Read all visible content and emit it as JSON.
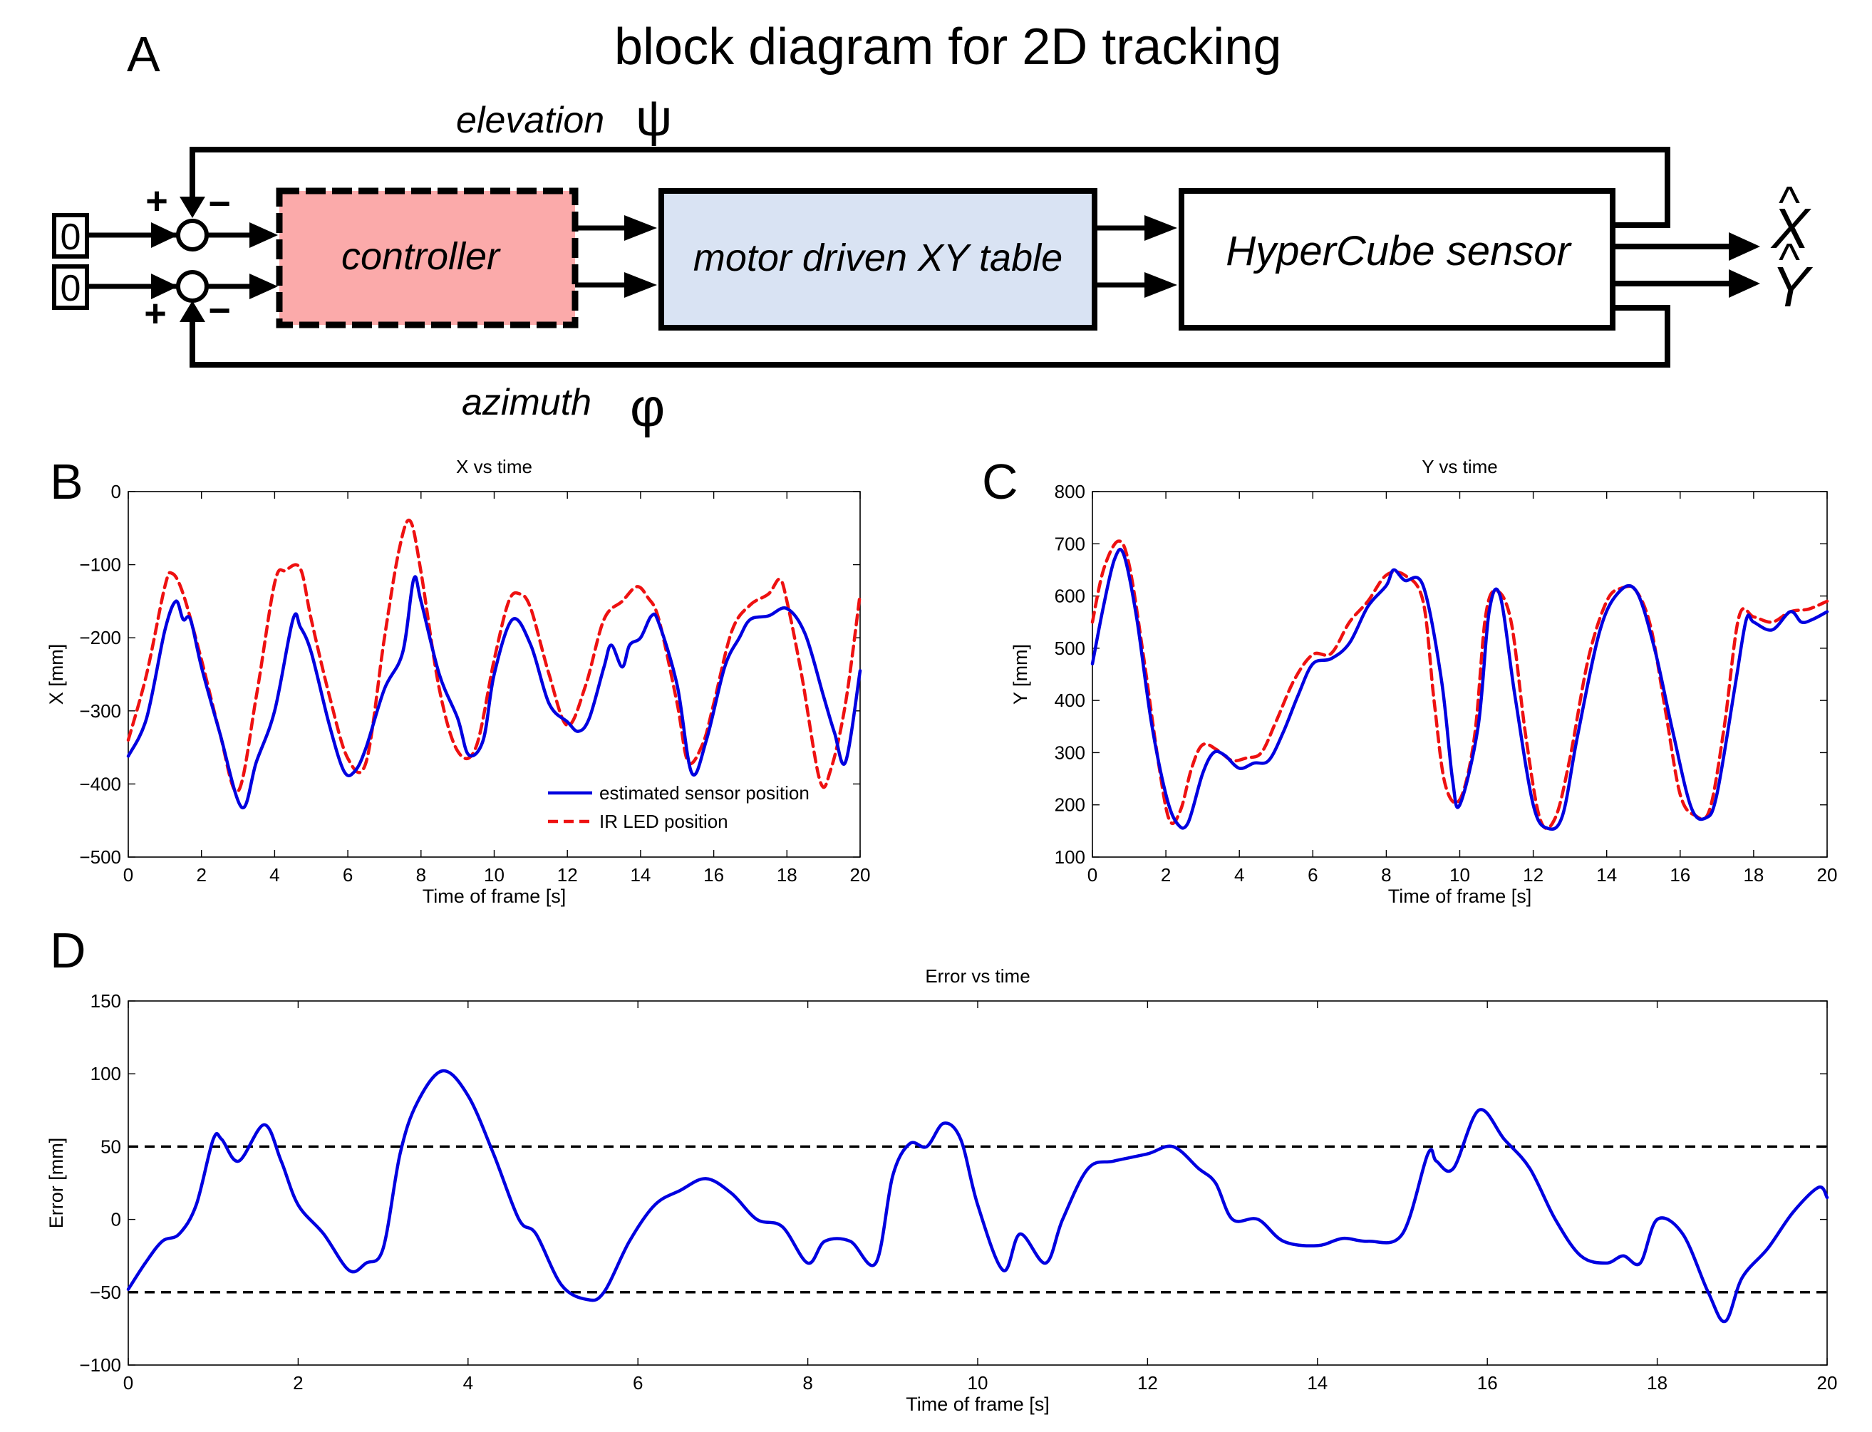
{
  "panel_a": {
    "label": "A",
    "title": "block diagram for 2D tracking",
    "input_top": "0",
    "input_bottom": "0",
    "plus_top": "+",
    "minus_top": "−",
    "plus_bottom": "+",
    "minus_bottom": "−",
    "controller": "controller",
    "table": "motor driven XY table",
    "sensor": "HyperCube sensor",
    "elevation_label": "elevation",
    "elevation_symbol": "ψ",
    "azimuth_label": "azimuth",
    "azimuth_symbol": "φ",
    "out_x": "X",
    "out_y": "Y",
    "hat": "^",
    "colors": {
      "controller_fill": "#fbaaaa",
      "table_fill": "#d9e3f3"
    }
  },
  "chart_data": [
    {
      "panel": "B",
      "type": "line",
      "title": "X vs time",
      "xlabel": "Time of frame [s]",
      "ylabel": "X [mm]",
      "xlim": [
        0,
        20
      ],
      "ylim": [
        -500,
        0
      ],
      "xticks": [
        0,
        2,
        4,
        6,
        8,
        10,
        12,
        14,
        16,
        18,
        20
      ],
      "xtick_labels": [
        "0",
        "2",
        "4",
        "6",
        "8",
        "10",
        "12",
        "14",
        "16",
        "18",
        "20"
      ],
      "yticks": [
        0,
        -100,
        -200,
        -300,
        -400,
        -500
      ],
      "ytick_labels": [
        "0",
        "−100",
        "−200",
        "−300",
        "−400",
        "−500"
      ],
      "legend": {
        "position": "bottom-right",
        "entries": [
          {
            "label": "estimated sensor position",
            "color": "#0000e0",
            "style": "solid"
          },
          {
            "label": "IR LED position",
            "color": "#ee1111",
            "style": "dashed"
          }
        ]
      },
      "series": [
        {
          "name": "estimated sensor position",
          "color": "#0000e0",
          "style": "solid",
          "x": [
            0,
            0.5,
            1.0,
            1.3,
            1.5,
            1.7,
            2.0,
            2.5,
            3.1,
            3.5,
            4.0,
            4.5,
            4.7,
            5.0,
            5.5,
            5.9,
            6.2,
            6.5,
            7.0,
            7.5,
            7.8,
            8.0,
            8.5,
            9.0,
            9.3,
            9.7,
            10.0,
            10.5,
            11.0,
            11.5,
            12.0,
            12.3,
            12.6,
            13.0,
            13.2,
            13.5,
            13.7,
            14.0,
            14.3,
            14.5,
            15.0,
            15.4,
            15.8,
            16.3,
            16.7,
            17.0,
            17.5,
            18.0,
            18.5,
            19.0,
            19.3,
            19.6,
            20.0
          ],
          "y": [
            -362,
            -310,
            -190,
            -150,
            -175,
            -175,
            -240,
            -330,
            -432,
            -370,
            -300,
            -175,
            -185,
            -220,
            -320,
            -383,
            -382,
            -350,
            -270,
            -220,
            -120,
            -150,
            -250,
            -310,
            -360,
            -340,
            -250,
            -175,
            -210,
            -290,
            -315,
            -328,
            -310,
            -240,
            -210,
            -240,
            -210,
            -200,
            -170,
            -180,
            -265,
            -385,
            -340,
            -240,
            -200,
            -175,
            -170,
            -160,
            -195,
            -280,
            -330,
            -370,
            -245
          ]
        },
        {
          "name": "IR LED position",
          "color": "#ee1111",
          "style": "dashed",
          "x": [
            0,
            0.5,
            1.0,
            1.2,
            1.5,
            2.0,
            2.5,
            3.0,
            3.5,
            4.0,
            4.3,
            4.7,
            5.0,
            5.5,
            6.0,
            6.5,
            7.0,
            7.4,
            7.7,
            8.0,
            8.5,
            9.0,
            9.5,
            10.0,
            10.4,
            10.7,
            11.0,
            11.5,
            12.0,
            12.5,
            13.0,
            13.5,
            13.9,
            14.2,
            14.5,
            15.0,
            15.3,
            15.7,
            16.0,
            16.5,
            17.0,
            17.5,
            17.8,
            18.0,
            18.4,
            18.9,
            19.2,
            19.6,
            20.0
          ],
          "y": [
            -340,
            -250,
            -130,
            -112,
            -140,
            -230,
            -330,
            -410,
            -280,
            -125,
            -108,
            -105,
            -175,
            -280,
            -365,
            -370,
            -200,
            -80,
            -40,
            -110,
            -270,
            -355,
            -350,
            -230,
            -150,
            -140,
            -160,
            -250,
            -320,
            -265,
            -175,
            -150,
            -130,
            -145,
            -175,
            -290,
            -370,
            -345,
            -290,
            -190,
            -155,
            -140,
            -120,
            -150,
            -250,
            -395,
            -380,
            -290,
            -140
          ]
        }
      ]
    },
    {
      "panel": "C",
      "type": "line",
      "title": "Y vs time",
      "xlabel": "Time of frame [s]",
      "ylabel": "Y [mm]",
      "xlim": [
        0,
        20
      ],
      "ylim": [
        100,
        800
      ],
      "xticks": [
        0,
        2,
        4,
        6,
        8,
        10,
        12,
        14,
        16,
        18,
        20
      ],
      "xtick_labels": [
        "0",
        "2",
        "4",
        "6",
        "8",
        "10",
        "12",
        "14",
        "16",
        "18",
        "20"
      ],
      "yticks": [
        100,
        200,
        300,
        400,
        500,
        600,
        700,
        800
      ],
      "ytick_labels": [
        "100",
        "200",
        "300",
        "400",
        "500",
        "600",
        "700",
        "800"
      ],
      "series": [
        {
          "name": "estimated sensor position",
          "color": "#0000e0",
          "style": "solid",
          "x": [
            0,
            0.3,
            0.6,
            0.85,
            1.2,
            1.6,
            2.0,
            2.3,
            2.6,
            3.0,
            3.3,
            3.6,
            4.0,
            4.4,
            4.8,
            5.2,
            5.6,
            6.0,
            6.5,
            7.0,
            7.5,
            8.0,
            8.2,
            8.5,
            9.0,
            9.5,
            9.8,
            10.0,
            10.5,
            10.8,
            11.1,
            11.5,
            12.0,
            12.4,
            12.8,
            13.2,
            13.8,
            14.3,
            14.8,
            15.3,
            15.8,
            16.3,
            16.7,
            17.0,
            17.5,
            17.8,
            18.0,
            18.5,
            19.0,
            19.3,
            19.6,
            20.0
          ],
          "y": [
            470,
            580,
            670,
            680,
            560,
            360,
            220,
            165,
            165,
            260,
            300,
            295,
            270,
            280,
            285,
            340,
            410,
            470,
            480,
            510,
            580,
            620,
            650,
            630,
            620,
            440,
            250,
            200,
            350,
            570,
            600,
            410,
            200,
            155,
            180,
            330,
            530,
            605,
            610,
            500,
            340,
            195,
            175,
            220,
            430,
            555,
            550,
            535,
            570,
            550,
            555,
            570
          ]
        },
        {
          "name": "IR LED position",
          "color": "#ee1111",
          "style": "dashed",
          "x": [
            0,
            0.3,
            0.7,
            1.0,
            1.4,
            1.8,
            2.1,
            2.4,
            2.7,
            3.0,
            3.4,
            3.8,
            4.2,
            4.6,
            5.0,
            5.5,
            6.0,
            6.5,
            7.0,
            7.5,
            8.0,
            8.5,
            9.0,
            9.3,
            9.6,
            10.0,
            10.4,
            10.7,
            11.0,
            11.4,
            11.8,
            12.2,
            12.6,
            13.0,
            13.5,
            14.0,
            14.4,
            14.8,
            15.2,
            15.6,
            16.0,
            16.4,
            16.8,
            17.2,
            17.6,
            18.0,
            18.5,
            19.0,
            19.5,
            20.0
          ],
          "y": [
            550,
            650,
            705,
            660,
            480,
            280,
            170,
            190,
            270,
            315,
            305,
            285,
            290,
            300,
            360,
            440,
            488,
            490,
            550,
            590,
            640,
            640,
            590,
            400,
            240,
            210,
            330,
            560,
            610,
            550,
            330,
            170,
            175,
            290,
            480,
            590,
            615,
            610,
            540,
            380,
            220,
            180,
            190,
            350,
            560,
            560,
            550,
            570,
            575,
            590
          ]
        }
      ]
    },
    {
      "panel": "D",
      "type": "line",
      "title": "Error vs time",
      "xlabel": "Time of frame [s]",
      "ylabel": "Error [mm]",
      "xlim": [
        0,
        20
      ],
      "ylim": [
        -100,
        150
      ],
      "xticks": [
        0,
        2,
        4,
        6,
        8,
        10,
        12,
        14,
        16,
        18,
        20
      ],
      "xtick_labels": [
        "0",
        "2",
        "4",
        "6",
        "8",
        "10",
        "12",
        "14",
        "16",
        "18",
        "20"
      ],
      "yticks": [
        150,
        100,
        50,
        0,
        -50,
        -100
      ],
      "ytick_labels": [
        "150",
        "100",
        "50",
        "0",
        "−50",
        "−100"
      ],
      "reference_lines": [
        50,
        -50
      ],
      "series": [
        {
          "name": "error",
          "color": "#0000e0",
          "style": "solid",
          "x": [
            0,
            0.2,
            0.4,
            0.6,
            0.8,
            1.0,
            1.1,
            1.3,
            1.6,
            1.8,
            2.0,
            2.3,
            2.6,
            2.8,
            3.0,
            3.2,
            3.4,
            3.7,
            4.0,
            4.3,
            4.6,
            4.8,
            5.1,
            5.4,
            5.6,
            5.9,
            6.2,
            6.5,
            6.8,
            7.1,
            7.4,
            7.7,
            8.0,
            8.2,
            8.5,
            8.8,
            9.0,
            9.2,
            9.4,
            9.6,
            9.8,
            10.0,
            10.3,
            10.5,
            10.8,
            11.0,
            11.3,
            11.6,
            12.0,
            12.3,
            12.6,
            12.8,
            13.0,
            13.3,
            13.6,
            14.0,
            14.3,
            14.6,
            15.0,
            15.3,
            15.4,
            15.6,
            15.9,
            16.2,
            16.5,
            16.8,
            17.1,
            17.4,
            17.6,
            17.8,
            18.0,
            18.3,
            18.6,
            18.8,
            19.0,
            19.3,
            19.6,
            19.9,
            20.0
          ],
          "y": [
            -48,
            -30,
            -15,
            -10,
            10,
            55,
            55,
            40,
            65,
            40,
            10,
            -10,
            -35,
            -30,
            -20,
            45,
            80,
            102,
            85,
            45,
            0,
            -10,
            -45,
            -55,
            -50,
            -15,
            10,
            20,
            28,
            18,
            0,
            -5,
            -30,
            -15,
            -15,
            -30,
            30,
            52,
            50,
            66,
            55,
            10,
            -35,
            -10,
            -30,
            0,
            35,
            40,
            45,
            50,
            35,
            25,
            0,
            0,
            -15,
            -18,
            -13,
            -15,
            -10,
            45,
            40,
            35,
            75,
            55,
            35,
            0,
            -25,
            -30,
            -25,
            -30,
            0,
            -10,
            -50,
            -70,
            -40,
            -20,
            5,
            22,
            15
          ]
        }
      ]
    }
  ]
}
